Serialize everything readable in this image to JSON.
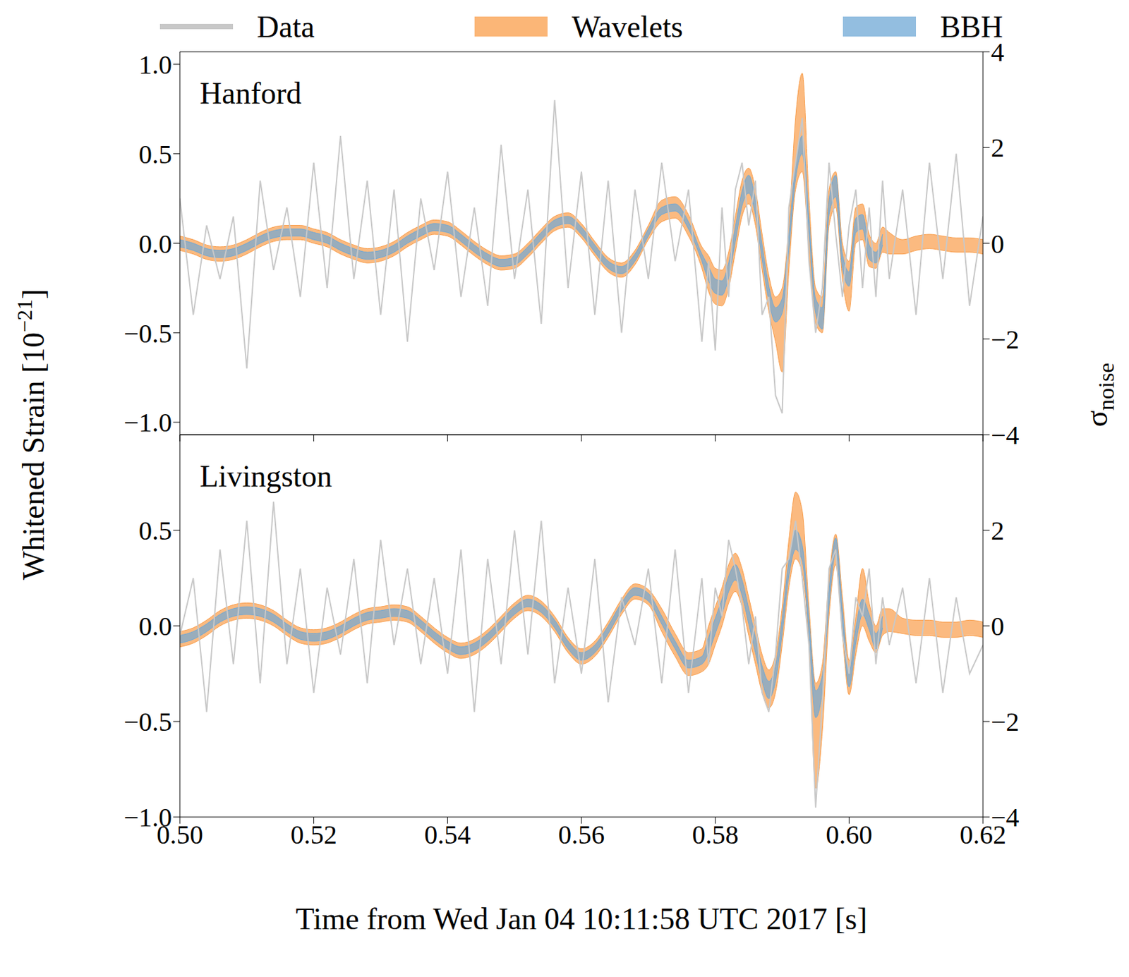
{
  "chart_data": [
    {
      "type": "line",
      "title": "Hanford",
      "ylabel": "Whitened Strain [10−21]",
      "y2label": "σnoise",
      "legend": "top",
      "tick_labels": "y",
      "x": [
        0.5,
        0.502,
        0.504,
        0.506,
        0.508,
        0.51,
        0.512,
        0.514,
        0.516,
        0.518,
        0.52,
        0.522,
        0.524,
        0.526,
        0.528,
        0.53,
        0.532,
        0.534,
        0.536,
        0.538,
        0.54,
        0.542,
        0.544,
        0.546,
        0.548,
        0.55,
        0.552,
        0.554,
        0.556,
        0.558,
        0.56,
        0.562,
        0.564,
        0.566,
        0.568,
        0.57,
        0.572,
        0.574,
        0.576,
        0.578,
        0.579,
        0.58,
        0.581,
        0.582,
        0.583,
        0.584,
        0.585,
        0.586,
        0.587,
        0.588,
        0.589,
        0.59,
        0.591,
        0.592,
        0.593,
        0.594,
        0.595,
        0.596,
        0.597,
        0.598,
        0.599,
        0.6,
        0.601,
        0.602,
        0.603,
        0.604,
        0.605,
        0.606,
        0.608,
        0.61,
        0.612,
        0.614,
        0.616,
        0.618,
        0.62
      ],
      "xlim": [
        0.5,
        0.62
      ],
      "xticks": [
        {
          "value": 0.5,
          "label": "0.50"
        },
        0.52,
        0.54,
        0.56,
        0.58,
        {
          "value": 0.6,
          "label": "0.60"
        },
        0.62
      ],
      "ylim": [
        -1.07,
        1.07
      ],
      "yticks": [
        {
          "value": -1,
          "label": "−1.0"
        },
        {
          "value": -0.5,
          "label": "−0.5"
        },
        {
          "value": 0,
          "label": "0.0"
        },
        0.5,
        {
          "value": 1,
          "label": "1.0"
        }
      ],
      "y2lim": [
        -4,
        4
      ],
      "y2ticks": [
        {
          "value": -4,
          "label": "−4"
        },
        {
          "value": -2,
          "label": "−2"
        },
        0,
        2,
        4
      ],
      "series": [
        {
          "name": "Data",
          "type": "line",
          "color": "#c8c8c8",
          "values": [
            0.25,
            -0.4,
            0.1,
            -0.2,
            0.15,
            -0.7,
            0.35,
            -0.15,
            0.2,
            -0.3,
            0.45,
            -0.25,
            0.6,
            -0.2,
            0.35,
            -0.4,
            0.3,
            -0.55,
            0.25,
            -0.15,
            0.4,
            -0.3,
            0.2,
            -0.35,
            0.55,
            -0.2,
            0.3,
            -0.45,
            0.8,
            -0.25,
            0.4,
            -0.4,
            0.35,
            -0.5,
            0.3,
            -0.2,
            0.45,
            -0.1,
            0.3,
            -0.55,
            -0.1,
            -0.6,
            0.2,
            -0.3,
            0.3,
            0.45,
            0.1,
            0.35,
            -0.4,
            -0.3,
            -0.85,
            -0.95,
            0.2,
            0.45,
            0.7,
            -0.1,
            -0.5,
            -0.25,
            0.45,
            0.05,
            -0.3,
            0.1,
            0.3,
            -0.25,
            0.2,
            -0.3,
            0.35,
            -0.2,
            0.3,
            -0.4,
            0.45,
            -0.2,
            0.5,
            -0.35,
            0.15
          ]
        },
        {
          "name": "Wavelets",
          "type": "band",
          "color": "#f99d4a",
          "lower": [
            -0.04,
            -0.06,
            -0.09,
            -0.1,
            -0.09,
            -0.06,
            -0.02,
            0.01,
            0.02,
            0.02,
            0.0,
            -0.02,
            -0.06,
            -0.09,
            -0.11,
            -0.1,
            -0.07,
            -0.02,
            0.02,
            0.05,
            0.04,
            -0.01,
            -0.07,
            -0.12,
            -0.15,
            -0.14,
            -0.08,
            0.0,
            0.07,
            0.09,
            0.03,
            -0.07,
            -0.16,
            -0.19,
            -0.12,
            0.02,
            0.12,
            0.14,
            0.04,
            -0.14,
            -0.27,
            -0.34,
            -0.35,
            -0.25,
            -0.05,
            0.15,
            0.22,
            0.1,
            -0.15,
            -0.38,
            -0.55,
            -0.72,
            -0.15,
            0.3,
            0.4,
            -0.05,
            -0.45,
            -0.5,
            0.1,
            0.2,
            -0.2,
            -0.38,
            0.0,
            0.02,
            -0.13,
            -0.14,
            -0.05,
            -0.06,
            -0.06,
            -0.04,
            -0.03,
            -0.04,
            -0.05,
            -0.05,
            -0.06
          ],
          "upper": [
            0.04,
            0.02,
            -0.01,
            -0.02,
            -0.01,
            0.02,
            0.06,
            0.09,
            0.1,
            0.1,
            0.08,
            0.06,
            0.02,
            -0.01,
            -0.03,
            -0.02,
            0.01,
            0.06,
            0.1,
            0.13,
            0.12,
            0.07,
            0.01,
            -0.04,
            -0.07,
            -0.06,
            0.0,
            0.08,
            0.15,
            0.17,
            0.11,
            0.01,
            -0.08,
            -0.11,
            -0.04,
            0.1,
            0.24,
            0.26,
            0.16,
            -0.02,
            -0.07,
            -0.14,
            -0.15,
            -0.05,
            0.15,
            0.35,
            0.42,
            0.3,
            0.05,
            -0.18,
            -0.3,
            -0.25,
            0.1,
            0.7,
            0.95,
            0.25,
            -0.25,
            -0.3,
            0.3,
            0.4,
            0.0,
            -0.1,
            0.2,
            0.22,
            0.05,
            0.0,
            0.09,
            0.06,
            0.02,
            0.04,
            0.05,
            0.04,
            0.03,
            0.03,
            0.02
          ]
        },
        {
          "name": "BBH",
          "type": "band",
          "color": "#6fa8d6",
          "lower": [
            -0.02,
            -0.04,
            -0.07,
            -0.08,
            -0.07,
            -0.04,
            0.0,
            0.03,
            0.04,
            0.04,
            0.02,
            0.0,
            -0.04,
            -0.07,
            -0.09,
            -0.08,
            -0.05,
            0.0,
            0.04,
            0.07,
            0.06,
            0.01,
            -0.05,
            -0.1,
            -0.13,
            -0.12,
            -0.06,
            0.02,
            0.09,
            0.11,
            0.05,
            -0.05,
            -0.14,
            -0.17,
            -0.1,
            0.04,
            0.16,
            0.18,
            0.08,
            -0.1,
            -0.21,
            -0.28,
            -0.29,
            -0.19,
            0.01,
            0.21,
            0.28,
            0.16,
            -0.09,
            -0.32,
            -0.44,
            -0.39,
            -0.04,
            0.36,
            0.5,
            0.06,
            -0.39,
            -0.48,
            0.16,
            0.26,
            -0.14,
            -0.24,
            0.06,
            0.08,
            -0.09,
            -0.11,
            -0.01,
            null,
            null,
            null,
            null,
            null,
            null,
            null,
            null
          ],
          "upper": [
            0.02,
            0.0,
            -0.03,
            -0.04,
            -0.03,
            0.0,
            0.04,
            0.07,
            0.08,
            0.08,
            0.06,
            0.04,
            0.0,
            -0.03,
            -0.05,
            -0.04,
            -0.01,
            0.04,
            0.08,
            0.11,
            0.1,
            0.05,
            -0.01,
            -0.06,
            -0.09,
            -0.08,
            -0.02,
            0.06,
            0.13,
            0.15,
            0.09,
            -0.01,
            -0.1,
            -0.13,
            -0.06,
            0.08,
            0.2,
            0.22,
            0.12,
            -0.06,
            -0.13,
            -0.2,
            -0.21,
            -0.11,
            0.09,
            0.29,
            0.38,
            0.24,
            -0.01,
            -0.24,
            -0.36,
            -0.31,
            0.04,
            0.44,
            0.6,
            0.14,
            -0.31,
            -0.36,
            0.24,
            0.38,
            -0.06,
            -0.16,
            0.14,
            0.16,
            -0.01,
            -0.05,
            0.05,
            null,
            null,
            null,
            null,
            null,
            null,
            null,
            null
          ]
        }
      ]
    },
    {
      "type": "line",
      "title": "Livingston",
      "xlabel": "Time from Wed Jan 04 10:11:58 UTC 2017 [s]",
      "x": [
        0.5,
        0.502,
        0.504,
        0.506,
        0.508,
        0.51,
        0.512,
        0.514,
        0.516,
        0.518,
        0.52,
        0.522,
        0.524,
        0.526,
        0.528,
        0.53,
        0.532,
        0.534,
        0.536,
        0.538,
        0.54,
        0.542,
        0.544,
        0.546,
        0.548,
        0.55,
        0.552,
        0.554,
        0.556,
        0.558,
        0.56,
        0.562,
        0.564,
        0.566,
        0.568,
        0.57,
        0.572,
        0.574,
        0.576,
        0.578,
        0.579,
        0.58,
        0.581,
        0.582,
        0.583,
        0.584,
        0.585,
        0.586,
        0.587,
        0.588,
        0.589,
        0.59,
        0.591,
        0.592,
        0.593,
        0.594,
        0.595,
        0.596,
        0.597,
        0.598,
        0.599,
        0.6,
        0.601,
        0.602,
        0.603,
        0.604,
        0.605,
        0.606,
        0.608,
        0.61,
        0.612,
        0.614,
        0.616,
        0.618,
        0.62
      ],
      "xlim": [
        0.5,
        0.62
      ],
      "xticks": [
        {
          "value": 0.5,
          "label": "0.50"
        },
        0.52,
        0.54,
        0.56,
        0.58,
        {
          "value": 0.6,
          "label": "0.60"
        },
        0.62
      ],
      "ylim": [
        -1.0,
        1.0
      ],
      "yticks": [
        {
          "value": -1,
          "label": "−1.0"
        },
        {
          "value": -0.5,
          "label": "−0.5"
        },
        {
          "value": 0,
          "label": "0.0"
        },
        0.5
      ],
      "y2lim": [
        -4,
        4
      ],
      "y2ticks": [
        {
          "value": -4,
          "label": "−4"
        },
        {
          "value": -2,
          "label": "−2"
        },
        0,
        2
      ],
      "series": [
        {
          "name": "Data",
          "type": "line",
          "color": "#c8c8c8",
          "values": [
            -0.05,
            0.25,
            -0.45,
            0.4,
            -0.2,
            0.55,
            -0.3,
            0.65,
            -0.2,
            0.3,
            -0.35,
            0.2,
            -0.15,
            0.35,
            -0.3,
            0.45,
            -0.1,
            0.3,
            -0.2,
            0.25,
            -0.25,
            0.4,
            -0.45,
            0.35,
            -0.2,
            0.5,
            -0.15,
            0.55,
            -0.3,
            0.2,
            -0.25,
            0.35,
            -0.4,
            0.15,
            -0.1,
            0.3,
            -0.3,
            0.4,
            -0.35,
            0.25,
            -0.2,
            0.2,
            0.05,
            0.45,
            0.3,
            0.1,
            -0.2,
            0.05,
            -0.35,
            -0.45,
            -0.15,
            0.3,
            0.35,
            0.55,
            0.25,
            -0.1,
            -0.95,
            -0.4,
            0.3,
            0.4,
            -0.05,
            -0.25,
            0.15,
            0.05,
            0.3,
            -0.2,
            0.15,
            -0.1,
            0.2,
            -0.3,
            0.25,
            -0.35,
            0.15,
            -0.25,
            -0.1
          ]
        },
        {
          "name": "Wavelets",
          "type": "band",
          "color": "#f99d4a",
          "lower": [
            -0.11,
            -0.09,
            -0.05,
            0.0,
            0.03,
            0.04,
            0.03,
            0.0,
            -0.05,
            -0.09,
            -0.1,
            -0.09,
            -0.06,
            -0.02,
            0.01,
            0.02,
            0.03,
            0.02,
            -0.03,
            -0.09,
            -0.14,
            -0.17,
            -0.15,
            -0.1,
            -0.03,
            0.04,
            0.08,
            0.05,
            -0.03,
            -0.14,
            -0.2,
            -0.16,
            -0.06,
            0.06,
            0.14,
            0.11,
            -0.03,
            -0.16,
            -0.26,
            -0.24,
            -0.2,
            -0.1,
            0.0,
            0.12,
            0.18,
            0.1,
            -0.05,
            -0.2,
            -0.35,
            -0.43,
            -0.35,
            -0.1,
            0.2,
            0.35,
            0.28,
            -0.1,
            -0.85,
            -0.55,
            0.05,
            0.32,
            -0.05,
            -0.36,
            -0.15,
            0.0,
            -0.08,
            -0.14,
            -0.05,
            -0.03,
            -0.04,
            -0.05,
            -0.05,
            -0.06,
            -0.06,
            -0.05,
            -0.06
          ],
          "upper": [
            -0.03,
            -0.01,
            0.03,
            0.08,
            0.11,
            0.12,
            0.11,
            0.08,
            0.03,
            -0.01,
            -0.02,
            -0.01,
            0.02,
            0.06,
            0.09,
            0.1,
            0.11,
            0.1,
            0.05,
            -0.01,
            -0.06,
            -0.09,
            -0.07,
            -0.02,
            0.05,
            0.12,
            0.16,
            0.13,
            0.05,
            -0.06,
            -0.12,
            -0.08,
            0.02,
            0.14,
            0.22,
            0.19,
            0.09,
            -0.04,
            -0.14,
            -0.12,
            0.0,
            0.1,
            0.2,
            0.32,
            0.38,
            0.3,
            0.15,
            0.0,
            -0.15,
            -0.23,
            -0.15,
            0.1,
            0.45,
            0.7,
            0.6,
            0.1,
            -0.3,
            -0.2,
            0.25,
            0.48,
            0.15,
            -0.18,
            0.05,
            0.3,
            0.12,
            0.0,
            0.09,
            0.09,
            0.04,
            0.03,
            0.03,
            0.02,
            0.02,
            0.03,
            0.02
          ]
        },
        {
          "name": "BBH",
          "type": "band",
          "color": "#6fa8d6",
          "lower": [
            -0.09,
            -0.07,
            -0.03,
            0.02,
            0.05,
            0.06,
            0.05,
            0.02,
            -0.03,
            -0.07,
            -0.08,
            -0.07,
            -0.04,
            0.0,
            0.03,
            0.04,
            0.05,
            0.04,
            -0.01,
            -0.07,
            -0.12,
            -0.15,
            -0.13,
            -0.08,
            -0.01,
            0.06,
            0.1,
            0.07,
            -0.01,
            -0.12,
            -0.18,
            -0.14,
            -0.04,
            0.08,
            0.16,
            0.13,
            0.01,
            -0.12,
            -0.22,
            -0.2,
            -0.14,
            -0.04,
            0.06,
            0.18,
            0.24,
            0.16,
            0.01,
            -0.14,
            -0.29,
            -0.38,
            -0.29,
            -0.04,
            0.26,
            0.4,
            0.34,
            -0.04,
            -0.48,
            -0.34,
            0.11,
            0.38,
            0.01,
            -0.32,
            -0.09,
            0.06,
            -0.02,
            -0.12,
            -0.01,
            null,
            null,
            null,
            null,
            null,
            null,
            null,
            null
          ],
          "upper": [
            -0.05,
            -0.03,
            0.01,
            0.06,
            0.09,
            0.1,
            0.09,
            0.06,
            0.01,
            -0.03,
            -0.04,
            -0.03,
            0.0,
            0.04,
            0.07,
            0.08,
            0.09,
            0.08,
            0.03,
            -0.03,
            -0.08,
            -0.11,
            -0.09,
            -0.04,
            0.03,
            0.1,
            0.14,
            0.11,
            0.03,
            -0.08,
            -0.14,
            -0.1,
            0.0,
            0.12,
            0.2,
            0.17,
            0.05,
            -0.08,
            -0.18,
            -0.16,
            -0.06,
            0.04,
            0.14,
            0.26,
            0.32,
            0.24,
            0.09,
            -0.06,
            -0.21,
            -0.29,
            -0.21,
            0.04,
            0.34,
            0.5,
            0.42,
            0.04,
            -0.34,
            -0.26,
            0.19,
            0.46,
            0.09,
            -0.24,
            -0.01,
            0.14,
            0.06,
            -0.04,
            0.05,
            null,
            null,
            null,
            null,
            null,
            null,
            null,
            null
          ]
        }
      ]
    }
  ]
}
